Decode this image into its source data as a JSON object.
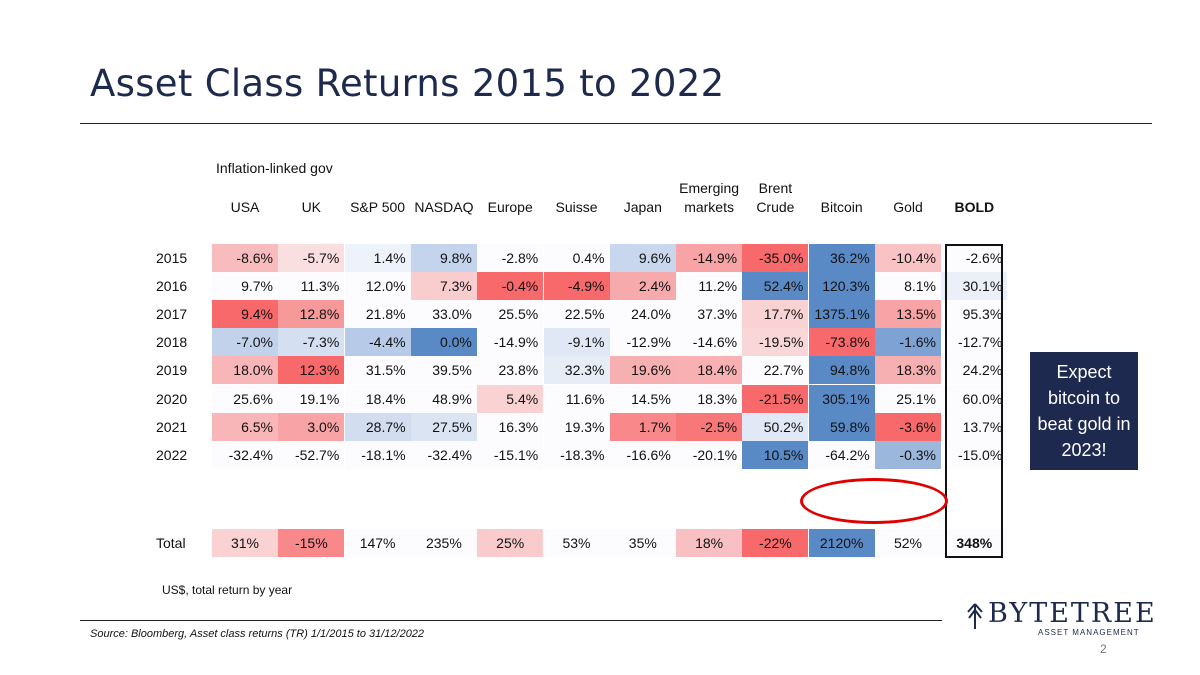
{
  "slide": {
    "title": "Asset Class Returns 2015 to 2022",
    "group_label": "Inflation-linked gov",
    "footnote": "US$, total return by year",
    "source": "Source: Bloomberg, Asset class returns (TR) 1/1/2015 to 31/12/2022",
    "callout": "Expect bitcoin to beat gold in 2023!",
    "logo_word": "BYTETREE",
    "logo_sub": "ASSET MANAGEMENT",
    "page_number": "2"
  },
  "colors": {
    "title": "#1e2a4d",
    "callout_bg": "#1e2950",
    "highlight": "#e00000",
    "heat_red": "#f8696b",
    "heat_blue": "#5a8ac6",
    "heat_mid": "#fcfcff"
  },
  "chart_data": {
    "type": "table",
    "title": "Asset Class Returns 2015 to 2022",
    "columns": [
      {
        "label": "USA",
        "lines": [
          "USA"
        ]
      },
      {
        "label": "UK",
        "lines": [
          "UK"
        ]
      },
      {
        "label": "S&P 500",
        "lines": [
          "S&P 500"
        ]
      },
      {
        "label": "NASDAQ",
        "lines": [
          "NASDAQ"
        ]
      },
      {
        "label": "Europe",
        "lines": [
          "Europe"
        ]
      },
      {
        "label": "Suisse",
        "lines": [
          "Suisse"
        ]
      },
      {
        "label": "Japan",
        "lines": [
          "Japan"
        ]
      },
      {
        "label": "Emerging markets",
        "lines": [
          "Emerging",
          "markets"
        ]
      },
      {
        "label": "Brent Crude",
        "lines": [
          "Brent",
          "Crude"
        ]
      },
      {
        "label": "Bitcoin",
        "lines": [
          "Bitcoin"
        ]
      },
      {
        "label": "Gold",
        "lines": [
          "Gold"
        ]
      },
      {
        "label": "BOLD",
        "lines": [
          "BOLD"
        ],
        "bold": true
      }
    ],
    "rows": [
      {
        "label": "2015",
        "values": [
          -8.6,
          -5.7,
          1.4,
          9.8,
          -2.8,
          0.4,
          9.6,
          -14.9,
          -35.0,
          36.2,
          -10.4,
          -2.6
        ]
      },
      {
        "label": "2016",
        "values": [
          9.7,
          11.3,
          12.0,
          7.3,
          -0.4,
          -4.9,
          2.4,
          11.2,
          52.4,
          120.3,
          8.1,
          30.1
        ]
      },
      {
        "label": "2017",
        "values": [
          9.4,
          12.8,
          21.8,
          33.0,
          25.5,
          22.5,
          24.0,
          37.3,
          17.7,
          1375.1,
          13.5,
          95.3
        ]
      },
      {
        "label": "2018",
        "values": [
          -7.0,
          -7.3,
          -4.4,
          0.0,
          -14.9,
          -9.1,
          -12.9,
          -14.6,
          -19.5,
          -73.8,
          -1.6,
          -12.7
        ]
      },
      {
        "label": "2019",
        "values": [
          18.0,
          12.3,
          31.5,
          39.5,
          23.8,
          32.3,
          19.6,
          18.4,
          22.7,
          94.8,
          18.3,
          24.2
        ]
      },
      {
        "label": "2020",
        "values": [
          25.6,
          19.1,
          18.4,
          48.9,
          5.4,
          11.6,
          14.5,
          18.3,
          -21.5,
          305.1,
          25.1,
          60.0
        ]
      },
      {
        "label": "2021",
        "values": [
          6.5,
          3.0,
          28.7,
          27.5,
          16.3,
          19.3,
          1.7,
          -2.5,
          50.2,
          59.8,
          -3.6,
          13.7
        ]
      },
      {
        "label": "2022",
        "values": [
          -32.4,
          -52.7,
          -18.1,
          -32.4,
          -15.1,
          -18.3,
          -16.6,
          -20.1,
          10.5,
          -64.2,
          -0.3,
          -15.0
        ]
      }
    ],
    "total": {
      "label": "Total",
      "values": [
        31,
        -15,
        147,
        235,
        25,
        53,
        35,
        18,
        -22,
        2120,
        52,
        348
      ]
    },
    "colors_by_column": {
      "2015": [
        "#f8bcbe",
        "#fadfe1",
        "#eef2fa",
        "#c4d4ec",
        "#fcfcff",
        "#fcfcff",
        "#c8d7ed",
        "#f8a4a6",
        "#f8696b",
        "#5a8ac6",
        "#f9c3c5",
        "#fcfcff"
      ],
      "2016": [
        "#fcfcff",
        "#fcfcff",
        "#fcfcff",
        "#f9ccce",
        "#f8696b",
        "#f8696b",
        "#f7aaac",
        "#fcfcff",
        "#5a8ac6",
        "#5a8ac6",
        "#fcfcff",
        "#eaeff8"
      ],
      "2017": [
        "#f8696b",
        "#f79899",
        "#fcfcff",
        "#fcfcff",
        "#fcfcff",
        "#fcfcff",
        "#fcfcff",
        "#fcfcff",
        "#f9d2d4",
        "#5a8ac6",
        "#f8a3a5",
        "#fcfcff"
      ],
      "2018": [
        "#c2d2eb",
        "#d4dff1",
        "#b7cbe8",
        "#5a8ac6",
        "#fcfcff",
        "#e0e8f5",
        "#fcfcff",
        "#fcfcff",
        "#f9d7d9",
        "#f8696b",
        "#7ea2d4",
        "#fcfcff"
      ],
      "2019": [
        "#f8b6b8",
        "#f8696b",
        "#fcfcff",
        "#fcfcff",
        "#fcfcff",
        "#e6edf7",
        "#f7b0b2",
        "#f8b0b2",
        "#fcfcff",
        "#5a8ac6",
        "#f7b0b2",
        "#fcfcff"
      ],
      "2020": [
        "#fcfcff",
        "#fcfcff",
        "#fcfcff",
        "#fcfcff",
        "#fad2d4",
        "#fcfcff",
        "#fcfcff",
        "#fcfcff",
        "#f8696b",
        "#5a8ac6",
        "#fcfcff",
        "#fcfcff"
      ],
      "2021": [
        "#f8b6b8",
        "#f8a4a6",
        "#d2ddf0",
        "#dae4f3",
        "#fcfcff",
        "#fcfcff",
        "#f8888a",
        "#f8787a",
        "#e2e9f6",
        "#5a8ac6",
        "#f8696b",
        "#fcfcff"
      ],
      "2022": [
        "#fcfcff",
        "#fcfcff",
        "#fcfcff",
        "#fcfcff",
        "#fcfcff",
        "#fcfcff",
        "#fcfcff",
        "#fcfcff",
        "#5a8ac6",
        "#fcfcff",
        "#9bb7dc",
        "#fcfcff"
      ],
      "Total": [
        "#fad2d4",
        "#f8888a",
        "#fcfcff",
        "#fcfcff",
        "#f9cbcd",
        "#fcfcff",
        "#fcfcff",
        "#f8c0c2",
        "#f8696b",
        "#5a8ac6",
        "#fcfcff",
        "#fcfcff"
      ]
    }
  }
}
